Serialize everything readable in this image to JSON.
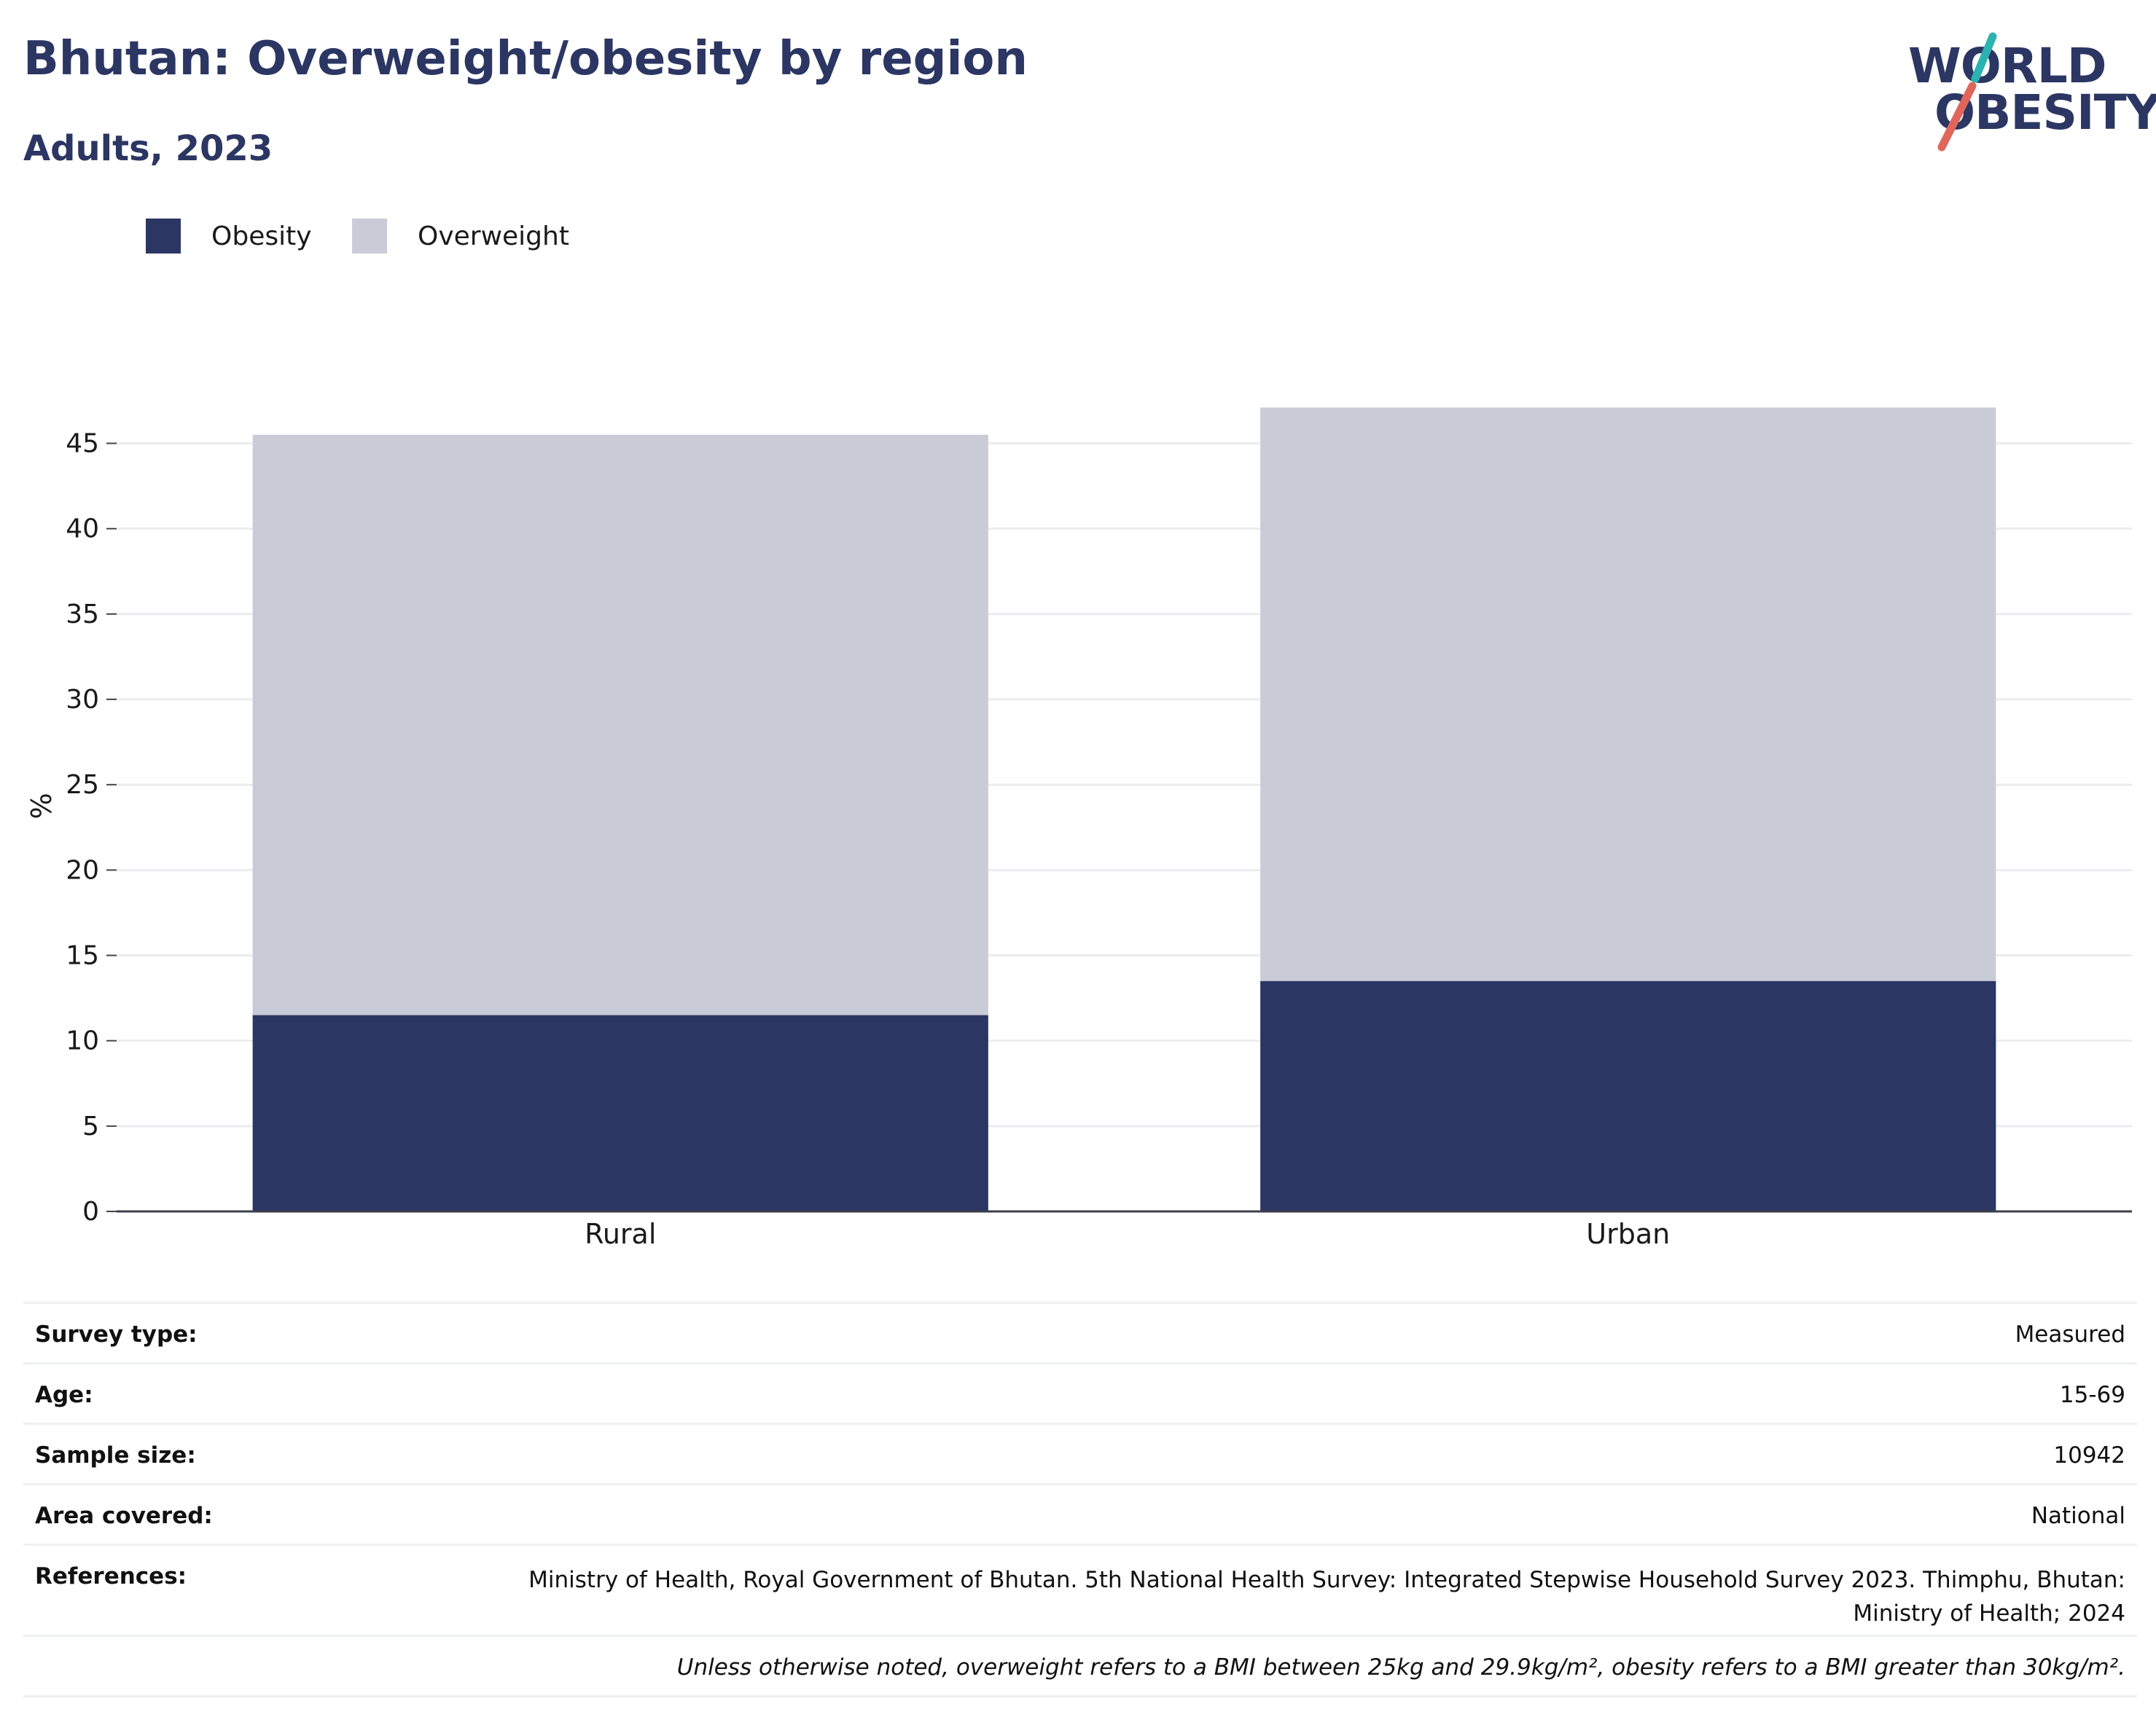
{
  "header": {
    "title": "Bhutan: Overweight/obesity by region",
    "subtitle": "Adults, 2023"
  },
  "logo": {
    "line1": "WORLD",
    "line2": "OBESITY",
    "accent_colors": [
      "#2bb3b1",
      "#e0655a"
    ]
  },
  "legend": [
    {
      "label": "Obesity",
      "color": "#2b3663"
    },
    {
      "label": "Overweight",
      "color": "#c9ccd7"
    }
  ],
  "chart_data": {
    "type": "bar",
    "stacked": true,
    "categories": [
      "Rural",
      "Urban"
    ],
    "series": [
      {
        "name": "Obesity",
        "values": [
          11.5,
          13.5
        ],
        "color": "#2b3663"
      },
      {
        "name": "Overweight",
        "values": [
          34.0,
          33.6
        ],
        "color": "#c9ccd7"
      }
    ],
    "title": "Bhutan: Overweight/obesity by region",
    "subtitle": "Adults, 2023",
    "xlabel": "",
    "ylabel": "%",
    "ylim": [
      0,
      47.5
    ],
    "yticks": [
      0,
      5,
      10,
      15,
      20,
      25,
      30,
      35,
      40,
      45
    ],
    "grid": true,
    "legend_position": "top-left"
  },
  "meta": {
    "survey_type": {
      "label": "Survey type:",
      "value": "Measured"
    },
    "age": {
      "label": "Age:",
      "value": "15-69"
    },
    "sample_size": {
      "label": "Sample size:",
      "value": "10942"
    },
    "area_covered": {
      "label": "Area covered:",
      "value": "National"
    },
    "references": {
      "label": "References:",
      "value": "Ministry of Health, Royal Government of Bhutan. 5th National Health Survey: Integrated Stepwise Household Survey 2023. Thimphu, Bhutan: Ministry of Health; 2024"
    },
    "note": "Unless otherwise noted, overweight refers to a BMI between 25kg and 29.9kg/m², obesity refers to a BMI greater than 30kg/m²."
  }
}
